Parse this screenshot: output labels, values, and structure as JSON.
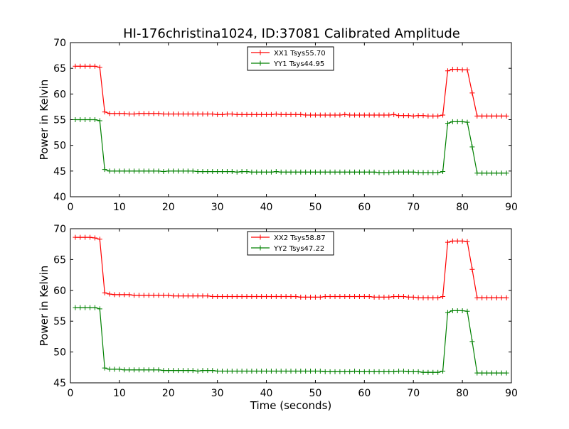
{
  "figure_title": "HI-176christina1024, ID:37081 Calibrated Amplitude",
  "colors": {
    "xx": "#ff0000",
    "yy": "#008000",
    "axis": "#000000"
  },
  "chart_data": [
    {
      "type": "line",
      "title": "HI-176christina1024, ID:37081 Calibrated Amplitude",
      "xlabel": "",
      "ylabel": "Power in Kelvin",
      "xlim": [
        0,
        90
      ],
      "ylim": [
        40,
        70
      ],
      "xticks": [
        0,
        10,
        20,
        30,
        40,
        50,
        60,
        70,
        80,
        90
      ],
      "yticks": [
        40,
        45,
        50,
        55,
        60,
        65,
        70
      ],
      "grid": false,
      "legend_position": "top-center",
      "series": [
        {
          "name": "XX1 Tsys55.70",
          "color": "#ff0000",
          "x": [
            1,
            2,
            3,
            4,
            5,
            6,
            7,
            8,
            9,
            10,
            11,
            12,
            13,
            14,
            15,
            16,
            17,
            18,
            19,
            20,
            21,
            22,
            23,
            24,
            25,
            26,
            27,
            28,
            29,
            30,
            31,
            32,
            33,
            34,
            35,
            36,
            37,
            38,
            39,
            40,
            41,
            42,
            43,
            44,
            45,
            46,
            47,
            48,
            49,
            50,
            51,
            52,
            53,
            54,
            55,
            56,
            57,
            58,
            59,
            60,
            61,
            62,
            63,
            64,
            65,
            66,
            67,
            68,
            69,
            70,
            71,
            72,
            73,
            74,
            75,
            76,
            77,
            78,
            79,
            80,
            81,
            82,
            83,
            84,
            85,
            86,
            87,
            88,
            89
          ],
          "y": [
            65.4,
            65.4,
            65.4,
            65.4,
            65.4,
            65.2,
            56.5,
            56.2,
            56.2,
            56.2,
            56.2,
            56.1,
            56.1,
            56.2,
            56.2,
            56.2,
            56.2,
            56.2,
            56.1,
            56.1,
            56.1,
            56.1,
            56.1,
            56.1,
            56.1,
            56.1,
            56.1,
            56.1,
            56.1,
            56.0,
            56.0,
            56.1,
            56.1,
            56.0,
            56.0,
            56.0,
            56.0,
            56.0,
            56.0,
            56.0,
            56.0,
            56.1,
            56.0,
            56.0,
            56.0,
            56.0,
            56.0,
            55.9,
            55.9,
            55.9,
            55.9,
            55.9,
            55.9,
            55.9,
            55.9,
            56.0,
            55.9,
            55.9,
            55.9,
            55.9,
            55.9,
            55.9,
            55.9,
            55.9,
            55.9,
            56.0,
            55.8,
            55.8,
            55.8,
            55.7,
            55.8,
            55.8,
            55.7,
            55.7,
            55.7,
            55.9,
            64.5,
            64.8,
            64.8,
            64.7,
            64.7,
            60.2,
            55.7,
            55.7,
            55.7,
            55.7,
            55.7,
            55.7,
            55.7
          ]
        },
        {
          "name": "YY1 Tsys44.95",
          "color": "#008000",
          "x": [
            1,
            2,
            3,
            4,
            5,
            6,
            7,
            8,
            9,
            10,
            11,
            12,
            13,
            14,
            15,
            16,
            17,
            18,
            19,
            20,
            21,
            22,
            23,
            24,
            25,
            26,
            27,
            28,
            29,
            30,
            31,
            32,
            33,
            34,
            35,
            36,
            37,
            38,
            39,
            40,
            41,
            42,
            43,
            44,
            45,
            46,
            47,
            48,
            49,
            50,
            51,
            52,
            53,
            54,
            55,
            56,
            57,
            58,
            59,
            60,
            61,
            62,
            63,
            64,
            65,
            66,
            67,
            68,
            69,
            70,
            71,
            72,
            73,
            74,
            75,
            76,
            77,
            78,
            79,
            80,
            81,
            82,
            83,
            84,
            85,
            86,
            87,
            88,
            89
          ],
          "y": [
            55.0,
            55.0,
            55.0,
            55.0,
            55.0,
            54.8,
            45.3,
            45.0,
            45.0,
            45.0,
            45.0,
            45.0,
            45.0,
            45.0,
            45.0,
            45.0,
            45.0,
            45.0,
            44.9,
            45.0,
            45.0,
            45.0,
            45.0,
            45.0,
            45.0,
            44.9,
            44.9,
            44.9,
            44.9,
            44.9,
            44.9,
            44.9,
            44.9,
            44.8,
            44.9,
            44.9,
            44.8,
            44.8,
            44.8,
            44.8,
            44.8,
            44.9,
            44.8,
            44.8,
            44.8,
            44.8,
            44.8,
            44.8,
            44.8,
            44.8,
            44.8,
            44.8,
            44.8,
            44.8,
            44.8,
            44.8,
            44.8,
            44.8,
            44.8,
            44.8,
            44.8,
            44.8,
            44.7,
            44.7,
            44.7,
            44.8,
            44.8,
            44.8,
            44.8,
            44.8,
            44.7,
            44.7,
            44.7,
            44.7,
            44.7,
            44.9,
            54.3,
            54.6,
            54.6,
            54.6,
            54.5,
            49.7,
            44.6,
            44.6,
            44.6,
            44.6,
            44.6,
            44.6,
            44.6
          ]
        }
      ]
    },
    {
      "type": "line",
      "title": "",
      "xlabel": "Time (seconds)",
      "ylabel": "Power in Kelvin",
      "xlim": [
        0,
        90
      ],
      "ylim": [
        45,
        70
      ],
      "xticks": [
        0,
        10,
        20,
        30,
        40,
        50,
        60,
        70,
        80,
        90
      ],
      "yticks": [
        45,
        50,
        55,
        60,
        65,
        70
      ],
      "grid": false,
      "legend_position": "top-center",
      "series": [
        {
          "name": "XX2 Tsys58.87",
          "color": "#ff0000",
          "x": [
            1,
            2,
            3,
            4,
            5,
            6,
            7,
            8,
            9,
            10,
            11,
            12,
            13,
            14,
            15,
            16,
            17,
            18,
            19,
            20,
            21,
            22,
            23,
            24,
            25,
            26,
            27,
            28,
            29,
            30,
            31,
            32,
            33,
            34,
            35,
            36,
            37,
            38,
            39,
            40,
            41,
            42,
            43,
            44,
            45,
            46,
            47,
            48,
            49,
            50,
            51,
            52,
            53,
            54,
            55,
            56,
            57,
            58,
            59,
            60,
            61,
            62,
            63,
            64,
            65,
            66,
            67,
            68,
            69,
            70,
            71,
            72,
            73,
            74,
            75,
            76,
            77,
            78,
            79,
            80,
            81,
            82,
            83,
            84,
            85,
            86,
            87,
            88,
            89
          ],
          "y": [
            68.6,
            68.6,
            68.6,
            68.6,
            68.5,
            68.3,
            59.6,
            59.4,
            59.3,
            59.3,
            59.3,
            59.3,
            59.2,
            59.2,
            59.2,
            59.2,
            59.2,
            59.2,
            59.2,
            59.2,
            59.1,
            59.1,
            59.1,
            59.1,
            59.1,
            59.1,
            59.1,
            59.1,
            59.0,
            59.0,
            59.0,
            59.0,
            59.0,
            59.0,
            59.0,
            59.0,
            59.0,
            59.0,
            59.0,
            59.0,
            59.0,
            59.0,
            59.0,
            59.0,
            59.0,
            59.0,
            58.9,
            58.9,
            58.9,
            58.9,
            58.9,
            59.0,
            59.0,
            59.0,
            59.0,
            59.0,
            59.0,
            59.0,
            59.0,
            59.0,
            59.0,
            58.9,
            58.9,
            58.9,
            58.9,
            59.0,
            59.0,
            59.0,
            58.9,
            58.9,
            58.8,
            58.8,
            58.8,
            58.8,
            58.8,
            59.0,
            67.8,
            68.0,
            68.0,
            68.0,
            67.9,
            63.4,
            58.8,
            58.8,
            58.8,
            58.8,
            58.8,
            58.8,
            58.8
          ]
        },
        {
          "name": "YY2 Tsys47.22",
          "color": "#008000",
          "x": [
            1,
            2,
            3,
            4,
            5,
            6,
            7,
            8,
            9,
            10,
            11,
            12,
            13,
            14,
            15,
            16,
            17,
            18,
            19,
            20,
            21,
            22,
            23,
            24,
            25,
            26,
            27,
            28,
            29,
            30,
            31,
            32,
            33,
            34,
            35,
            36,
            37,
            38,
            39,
            40,
            41,
            42,
            43,
            44,
            45,
            46,
            47,
            48,
            49,
            50,
            51,
            52,
            53,
            54,
            55,
            56,
            57,
            58,
            59,
            60,
            61,
            62,
            63,
            64,
            65,
            66,
            67,
            68,
            69,
            70,
            71,
            72,
            73,
            74,
            75,
            76,
            77,
            78,
            79,
            80,
            81,
            82,
            83,
            84,
            85,
            86,
            87,
            88,
            89
          ],
          "y": [
            57.2,
            57.2,
            57.2,
            57.2,
            57.2,
            57.0,
            47.4,
            47.2,
            47.2,
            47.2,
            47.1,
            47.1,
            47.1,
            47.1,
            47.1,
            47.1,
            47.1,
            47.1,
            47.0,
            47.0,
            47.0,
            47.0,
            47.0,
            47.0,
            47.0,
            46.9,
            47.0,
            47.0,
            47.0,
            46.9,
            46.9,
            46.9,
            46.9,
            46.9,
            46.9,
            46.9,
            46.9,
            46.9,
            46.9,
            46.9,
            46.9,
            46.9,
            46.9,
            46.9,
            46.9,
            46.9,
            46.9,
            46.9,
            46.9,
            46.9,
            46.9,
            46.8,
            46.8,
            46.8,
            46.8,
            46.8,
            46.8,
            46.9,
            46.8,
            46.8,
            46.8,
            46.8,
            46.8,
            46.8,
            46.8,
            46.8,
            46.9,
            46.9,
            46.8,
            46.8,
            46.8,
            46.7,
            46.7,
            46.7,
            46.7,
            46.9,
            56.4,
            56.7,
            56.7,
            56.7,
            56.6,
            51.7,
            46.6,
            46.6,
            46.6,
            46.6,
            46.6,
            46.6,
            46.6
          ]
        }
      ]
    }
  ]
}
